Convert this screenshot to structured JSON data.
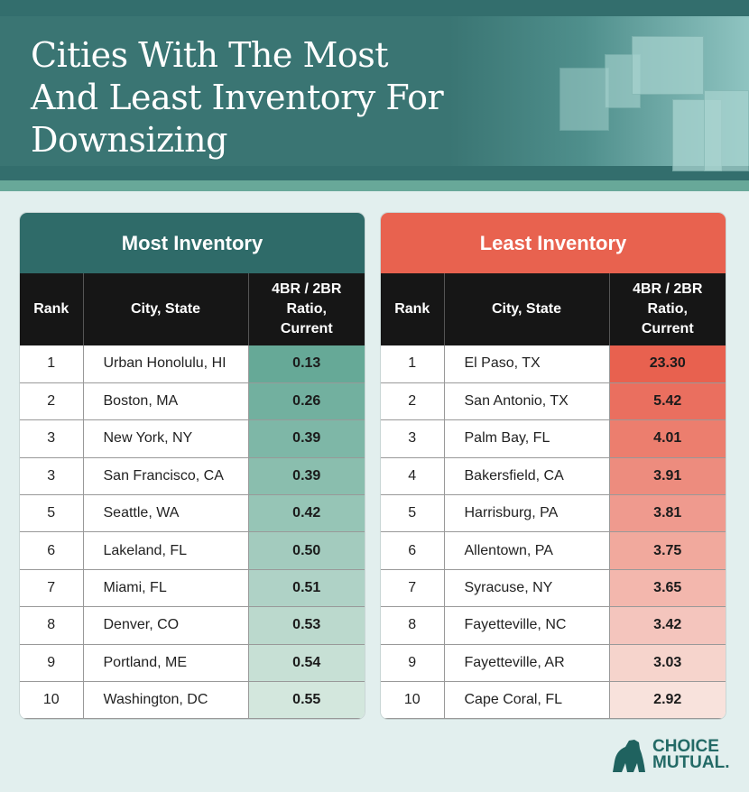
{
  "title_lines": [
    "Cities With The Most",
    "And Least Inventory For",
    "Downsizing"
  ],
  "column_headers": {
    "rank": "Rank",
    "city": "City, State",
    "ratio_lines": [
      "4BR / 2BR",
      "Ratio,",
      "Current"
    ]
  },
  "most": {
    "title": "Most Inventory",
    "color_strong": "#66a997",
    "color_light": "#d3e7dd",
    "rows": [
      {
        "rank": "1",
        "city": "Urban Honolulu, HI",
        "ratio": "0.13"
      },
      {
        "rank": "2",
        "city": "Boston, MA",
        "ratio": "0.26"
      },
      {
        "rank": "3",
        "city": "New York, NY",
        "ratio": "0.39"
      },
      {
        "rank": "3",
        "city": "San Francisco, CA",
        "ratio": "0.39"
      },
      {
        "rank": "5",
        "city": "Seattle, WA",
        "ratio": "0.42"
      },
      {
        "rank": "6",
        "city": "Lakeland, FL",
        "ratio": "0.50"
      },
      {
        "rank": "7",
        "city": "Miami, FL",
        "ratio": "0.51"
      },
      {
        "rank": "8",
        "city": "Denver, CO",
        "ratio": "0.53"
      },
      {
        "rank": "9",
        "city": "Portland, ME",
        "ratio": "0.54"
      },
      {
        "rank": "10",
        "city": "Washington, DC",
        "ratio": "0.55"
      }
    ]
  },
  "least": {
    "title": "Least Inventory",
    "color_strong": "#e8614f",
    "color_light": "#f8e2dc",
    "rows": [
      {
        "rank": "1",
        "city": "El Paso, TX",
        "ratio": "23.30"
      },
      {
        "rank": "2",
        "city": "San Antonio, TX",
        "ratio": "5.42"
      },
      {
        "rank": "3",
        "city": "Palm Bay, FL",
        "ratio": "4.01"
      },
      {
        "rank": "4",
        "city": "Bakersfield, CA",
        "ratio": "3.91"
      },
      {
        "rank": "5",
        "city": "Harrisburg, PA",
        "ratio": "3.81"
      },
      {
        "rank": "6",
        "city": "Allentown, PA",
        "ratio": "3.75"
      },
      {
        "rank": "7",
        "city": "Syracuse, NY",
        "ratio": "3.65"
      },
      {
        "rank": "8",
        "city": "Fayetteville, NC",
        "ratio": "3.42"
      },
      {
        "rank": "9",
        "city": "Fayetteville, AR",
        "ratio": "3.03"
      },
      {
        "rank": "10",
        "city": "Cape Coral, FL",
        "ratio": "2.92"
      }
    ]
  },
  "logo": {
    "line1": "CHOICE",
    "line2": "MUTUAL."
  }
}
